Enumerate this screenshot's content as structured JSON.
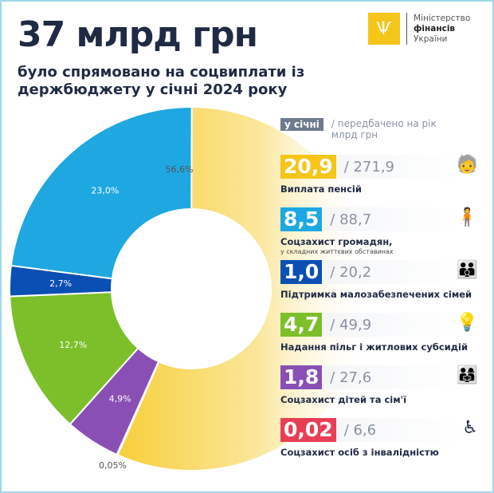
{
  "header": {
    "title": "37 млрд грн",
    "subtitle": "було спрямовано на соцвиплати із держбюджету у січні 2024 року"
  },
  "logo": {
    "line1": "Міністерство",
    "line2": "фінансів",
    "line3": "України"
  },
  "legend": {
    "tag": "у січні",
    "note": "/ передбачено на рік млрд грн"
  },
  "items": [
    {
      "value": "20,9",
      "plan": "/ 271,9",
      "label": "Виплата пенсій",
      "sub": "",
      "color": "#f5c518",
      "icon": "pensioners-icon",
      "glyph": "🧓"
    },
    {
      "value": "8,5",
      "plan": "/ 88,7",
      "label": "Соцзахист громадян,",
      "sub": "у складних життєвих обставинах",
      "color": "#1ea7e1",
      "icon": "citizens-icon",
      "glyph": "🧍"
    },
    {
      "value": "1,0",
      "plan": "/ 20,2",
      "label": "Підтримка малозабезпечених сімей",
      "sub": "",
      "color": "#0a4fb3",
      "icon": "family-icon",
      "glyph": "👪"
    },
    {
      "value": "4,7",
      "plan": "/ 49,9",
      "label": "Надання пільг і житлових субсидій",
      "sub": "",
      "color": "#7cbf2a",
      "icon": "utilities-icon",
      "glyph": "💡"
    },
    {
      "value": "1,8",
      "plan": "/ 27,6",
      "label": "Соцзахист дітей та сім'ї",
      "sub": "",
      "color": "#8a4fb5",
      "icon": "children-icon",
      "glyph": "👨‍👩‍👧"
    },
    {
      "value": "0,02",
      "plan": "/ 6,6",
      "label": "Соцзахист осіб з інвалідністю",
      "sub": "",
      "color": "#e83f56",
      "icon": "wheelchair-icon",
      "glyph": "♿"
    }
  ],
  "chart_data": {
    "type": "pie",
    "donut": true,
    "categories": [
      "Виплата пенсій",
      "Соцзахист громадян",
      "Підтримка малозабезпечених сімей",
      "Надання пільг і житлових субсидій",
      "Соцзахист дітей та сім'ї",
      "Соцзахист осіб з інвалідністю"
    ],
    "values": [
      56.6,
      0.05,
      4.9,
      12.7,
      2.7,
      23.0
    ],
    "order": [
      "Виплата пенсій",
      "Соцзахист осіб з інвалідністю",
      "Соцзахист дітей та сім'ї",
      "Надання пільг і житлових субсидій",
      "Підтримка малозабезпечених сімей",
      "Соцзахист громадян"
    ],
    "slice_values": [
      56.6,
      0.05,
      4.9,
      12.7,
      2.7,
      23.0
    ],
    "labels": [
      "56,6%",
      "0,05%",
      "4,9%",
      "12,7%",
      "2,7%",
      "23,0%"
    ],
    "colors": [
      "#f5c518",
      "#e83f56",
      "#8a4fb5",
      "#7cbf2a",
      "#0a4fb3",
      "#1ea7e1"
    ]
  }
}
